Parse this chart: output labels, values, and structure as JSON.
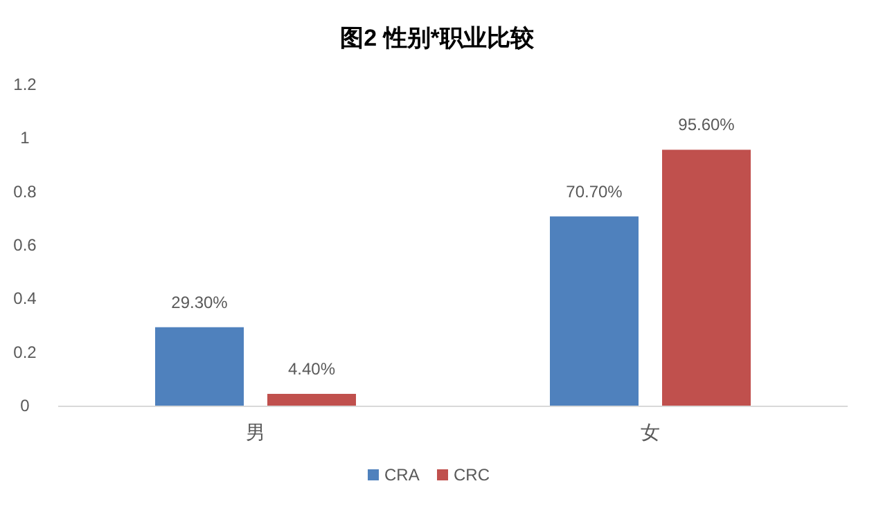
{
  "chart_data": {
    "type": "bar",
    "title": "图2 性别*职业比较",
    "categories": [
      "男",
      "女"
    ],
    "series": [
      {
        "name": "CRA",
        "color": "#4f81bd",
        "values": [
          0.293,
          0.707
        ],
        "value_labels": [
          "29.30%",
          "70.70%"
        ]
      },
      {
        "name": "CRC",
        "color": "#c0504d",
        "values": [
          0.044,
          0.956
        ],
        "value_labels": [
          "4.40%",
          "95.60%"
        ]
      }
    ],
    "ylim": [
      0,
      1.2
    ],
    "yticks": [
      0,
      0.2,
      0.4,
      0.6,
      0.8,
      1,
      1.2
    ],
    "grid": false,
    "legend": "bottom"
  }
}
